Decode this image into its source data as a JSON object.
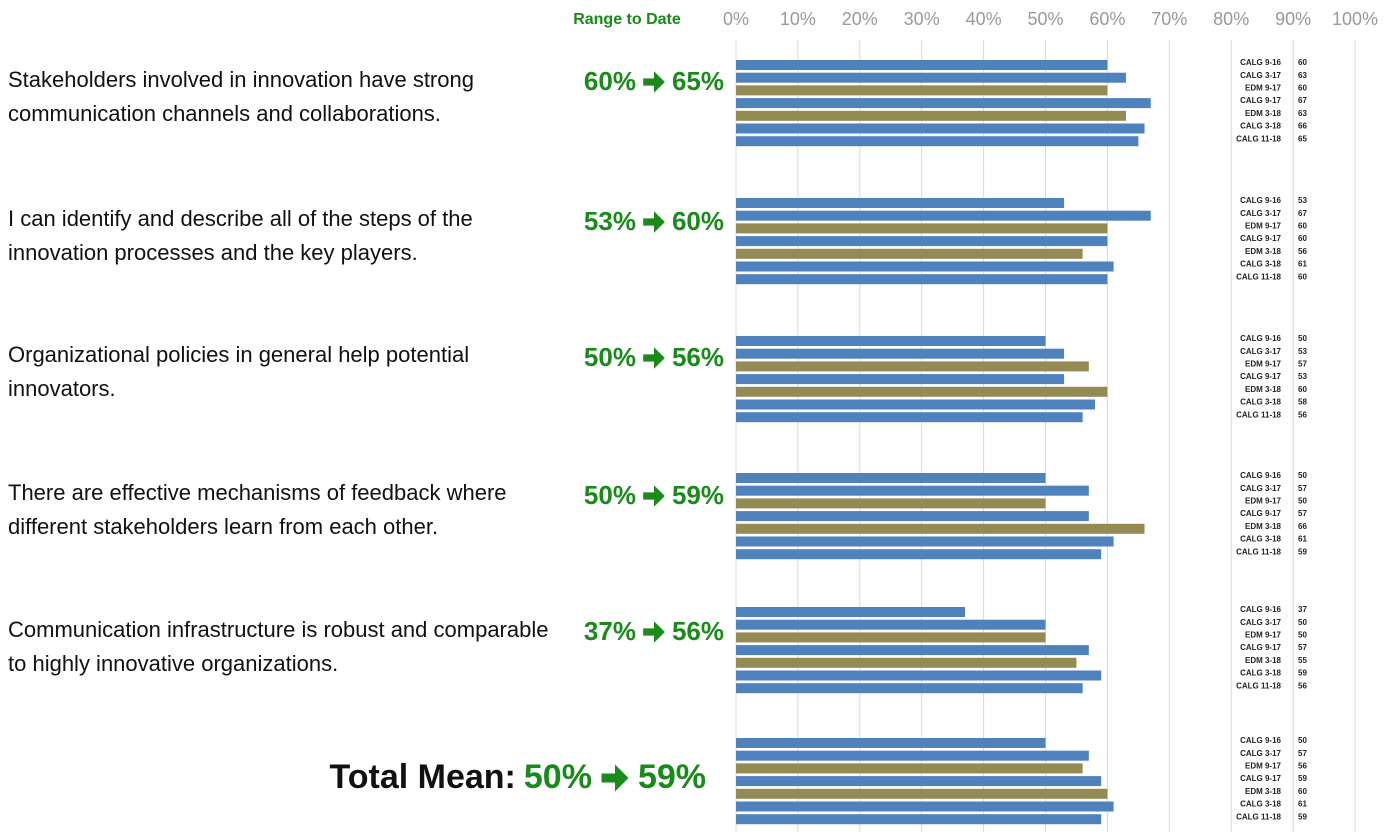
{
  "chart_data": {
    "type": "bar",
    "orientation": "horizontal",
    "range_header": "Range to Date",
    "categories": [
      "Stakeholders involved in innovation have strong communication channels and collaborations.",
      "I can identify and describe all of the steps of the innovation processes and the key players.",
      "Organizational policies in general help potential innovators.",
      "There are effective mechanisms of feedback where different stakeholders learn from each other.",
      "Communication infrastructure is robust and comparable to highly innovative organizations.",
      "Total Mean:"
    ],
    "range_from": [
      "60%",
      "53%",
      "50%",
      "50%",
      "37%",
      "50%"
    ],
    "range_to": [
      "65%",
      "60%",
      "56%",
      "59%",
      "56%",
      "59%"
    ],
    "series": [
      {
        "name": "CALG 9-16",
        "color": "#4f81bd",
        "values": [
          60,
          53,
          50,
          50,
          37,
          50
        ]
      },
      {
        "name": "CALG 3-17",
        "color": "#4f81bd",
        "values": [
          63,
          67,
          53,
          57,
          50,
          57
        ]
      },
      {
        "name": "EDM 9-17",
        "color": "#948a54",
        "values": [
          60,
          60,
          57,
          50,
          50,
          56
        ]
      },
      {
        "name": "CALG 9-17",
        "color": "#4f81bd",
        "values": [
          67,
          60,
          53,
          57,
          57,
          59
        ]
      },
      {
        "name": "EDM 3-18",
        "color": "#948a54",
        "values": [
          63,
          56,
          60,
          66,
          55,
          60
        ]
      },
      {
        "name": "CALG 3-18",
        "color": "#4f81bd",
        "values": [
          66,
          61,
          58,
          61,
          59,
          61
        ]
      },
      {
        "name": "CALG 11-18",
        "color": "#4f81bd",
        "values": [
          65,
          60,
          56,
          59,
          56,
          59
        ]
      }
    ],
    "xlim": [
      0,
      100
    ],
    "xticks": [
      {
        "value": 0,
        "label": "0%"
      },
      {
        "value": 10,
        "label": "10%"
      },
      {
        "value": 20,
        "label": "20%"
      },
      {
        "value": 30,
        "label": "30%"
      },
      {
        "value": 40,
        "label": "40%"
      },
      {
        "value": 50,
        "label": "50%"
      },
      {
        "value": 60,
        "label": "60%"
      },
      {
        "value": 70,
        "label": "70%"
      },
      {
        "value": 80,
        "label": "80%"
      },
      {
        "value": 90,
        "label": "90%"
      },
      {
        "value": 100,
        "label": "100%"
      }
    ],
    "grid": true
  }
}
